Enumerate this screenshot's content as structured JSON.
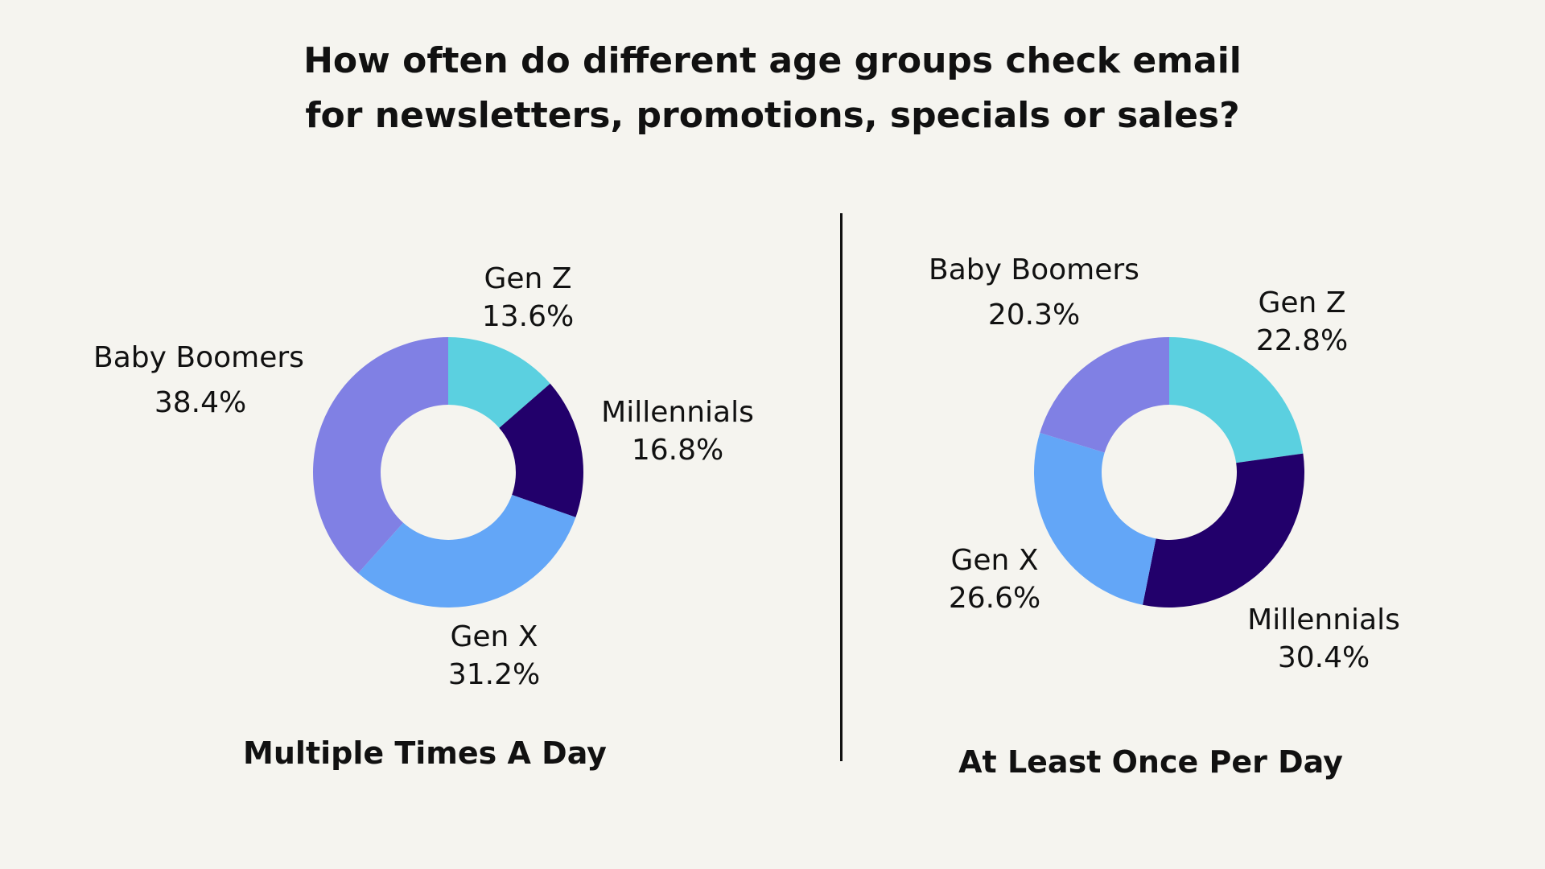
{
  "title": {
    "line1": "How often do different age groups check email",
    "line2": "for newsletters, promotions, specials or sales?"
  },
  "colors": {
    "Gen Z": "#5bd0e0",
    "Millennials": "#22006b",
    "Gen X": "#63a6f7",
    "Baby Boomers": "#8080e4",
    "background": "#f5f4ef",
    "text": "#111111"
  },
  "chart_data": [
    {
      "type": "pie",
      "donut": true,
      "title": "Multiple Times A Day",
      "categories": [
        "Gen Z",
        "Millennials",
        "Gen X",
        "Baby Boomers"
      ],
      "values": [
        13.6,
        16.8,
        31.2,
        38.4
      ],
      "labels": [
        "13.6%",
        "16.8%",
        "31.2%",
        "38.4%"
      ]
    },
    {
      "type": "pie",
      "donut": true,
      "title": "At Least Once Per Day",
      "categories": [
        "Gen Z",
        "Millennials",
        "Gen X",
        "Baby Boomers"
      ],
      "values": [
        22.8,
        30.4,
        26.6,
        20.3
      ],
      "labels": [
        "22.8%",
        "30.4%",
        "26.6%",
        "20.3%"
      ]
    }
  ]
}
